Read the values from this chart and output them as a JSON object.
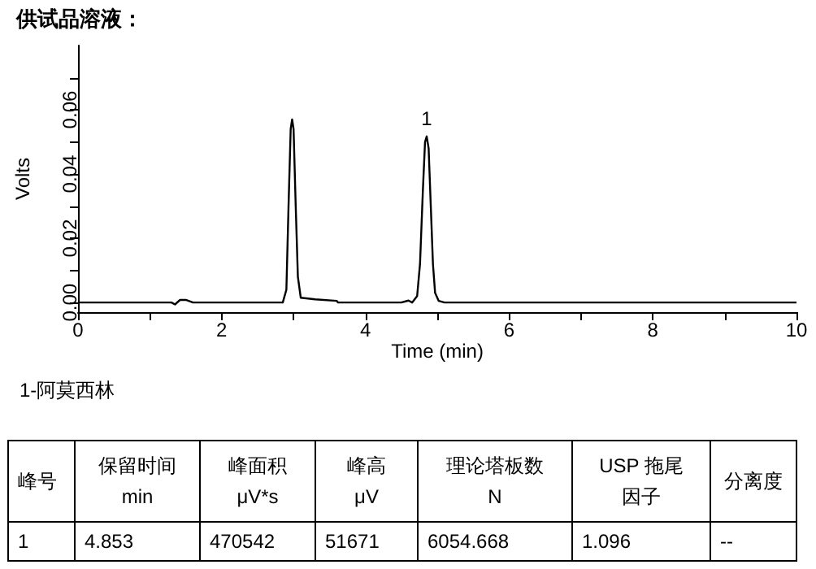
{
  "chart_data": {
    "type": "line",
    "title": "供试品溶液：",
    "xlabel": "Time (min)",
    "ylabel": "Volts",
    "x": [
      0,
      1.3,
      1.35,
      1.42,
      1.5,
      1.6,
      2.85,
      2.9,
      2.93,
      2.96,
      2.98,
      3.0,
      3.03,
      3.06,
      3.1,
      3.3,
      3.6,
      3.62,
      4.5,
      4.6,
      4.65,
      4.72,
      4.76,
      4.8,
      4.83,
      4.853,
      4.88,
      4.91,
      4.94,
      4.97,
      5.02,
      5.1,
      10
    ],
    "series": [
      {
        "color": "#000000",
        "values": [
          0,
          0,
          -0.0006,
          0.0008,
          0.0008,
          0,
          0,
          0.004,
          0.03,
          0.054,
          0.057,
          0.054,
          0.03,
          0.008,
          0.0015,
          0.001,
          0.0005,
          0,
          0,
          0.0006,
          0,
          0.002,
          0.012,
          0.035,
          0.05,
          0.0517,
          0.048,
          0.03,
          0.012,
          0.003,
          0.0005,
          0,
          0
        ]
      }
    ],
    "xlim": [
      0,
      10
    ],
    "xticks": [
      0,
      {
        "value": 1,
        "label": null
      },
      2,
      {
        "value": 3,
        "label": null
      },
      4,
      {
        "value": 5,
        "label": null
      },
      6,
      {
        "value": 7,
        "label": null
      },
      8,
      {
        "value": 9,
        "label": null
      },
      10
    ],
    "ylim": [
      -0.003,
      0.08
    ],
    "yticks": [
      {
        "value": 0,
        "label": "0.00"
      },
      {
        "value": 0.01,
        "label": null
      },
      {
        "value": 0.02,
        "label": "0.02"
      },
      {
        "value": 0.03,
        "label": null
      },
      {
        "value": 0.04,
        "label": "0.04"
      },
      {
        "value": 0.05,
        "label": null
      },
      {
        "value": 0.06,
        "label": "0.06"
      },
      {
        "value": 0.07,
        "label": null
      }
    ],
    "grid": false,
    "marker": "none",
    "line_style": "solid",
    "annotations": [
      {
        "text": "1",
        "x": 4.853,
        "y": 0.0517
      },
      "1-阿莫西林",
      "峰号",
      "保留时间",
      "min",
      "峰面积",
      "μV*s",
      "峰高",
      "μV",
      "理论塔板数",
      "N",
      "USP 拖尾",
      "因子",
      "分离度",
      "1",
      "4.853",
      "470542",
      "51671",
      "6054.668",
      "1.096",
      "--"
    ]
  }
}
